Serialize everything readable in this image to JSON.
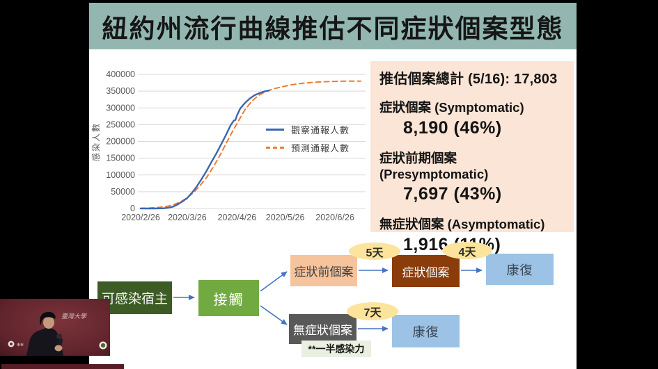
{
  "slide": {
    "title": "紐約州流行曲線推估不同症狀個案型態",
    "title_bar_color": "#93b7b0"
  },
  "chart_data": {
    "type": "line",
    "title": "",
    "xlabel": "",
    "ylabel": "感染人數",
    "ylim": [
      0,
      400000
    ],
    "ytick_step": 50000,
    "xtick_labels": [
      "2020/2/26",
      "2020/3/26",
      "2020/4/26",
      "2020/5/26",
      "2020/6/26"
    ],
    "xtick_days": [
      0,
      29,
      60,
      90,
      121
    ],
    "x_domain_days": [
      0,
      137
    ],
    "grid": true,
    "legend_position": "middle-right",
    "series": [
      {
        "name": "觀察通報人數",
        "color": "#3a66b0",
        "style": "solid",
        "days": [
          0,
          8,
          14,
          17,
          20,
          23,
          26,
          29,
          32,
          35,
          38,
          41,
          44,
          47,
          50,
          53,
          56,
          58,
          59,
          60,
          62,
          65,
          68,
          71,
          74,
          77,
          80
        ],
        "values": [
          0,
          0,
          500,
          2000,
          5000,
          12000,
          21000,
          31000,
          47000,
          66000,
          88000,
          112000,
          138000,
          163000,
          190000,
          218000,
          248000,
          262000,
          264000,
          278000,
          298000,
          315000,
          328000,
          338000,
          344000,
          349000,
          352000
        ]
      },
      {
        "name": "預測通報人數",
        "color": "#ed7d31",
        "style": "dashed",
        "days": [
          0,
          6,
          12,
          17,
          21,
          25,
          29,
          33,
          37,
          41,
          45,
          49,
          53,
          57,
          61,
          65,
          69,
          73,
          78,
          83,
          88,
          94,
          100,
          107,
          114,
          121,
          129,
          137
        ],
        "values": [
          500,
          1500,
          3500,
          7000,
          12000,
          20000,
          32000,
          48000,
          68000,
          92000,
          122000,
          155000,
          192000,
          228000,
          262000,
          295000,
          319000,
          336000,
          349000,
          357000,
          363000,
          369000,
          373000,
          376000,
          378000,
          379000,
          380000,
          380000
        ]
      }
    ]
  },
  "stats": {
    "total_line": "推估個案總計 (5/16): 17,803",
    "items": [
      {
        "label": "症狀個案 (Symptomatic)",
        "value": "8,190 (46%)"
      },
      {
        "label": "症狀前期個案 (Presymptomatic)",
        "value": "7,697 (43%)"
      },
      {
        "label": "無症狀個案 (Asymptomatic)",
        "value": "1,916 (11%)"
      }
    ],
    "panel_color": "#fbe5d6"
  },
  "flow": {
    "nodes": {
      "host": "可感染宿主",
      "contact": "接觸",
      "presymptomatic": "症狀前個案",
      "symptomatic": "症狀個案",
      "recovered_top": "康復",
      "asymptomatic": "無症狀個案",
      "recovered_bottom": "康復",
      "note": "**一半感染力"
    },
    "durations": {
      "d5": "5天",
      "d4": "4天",
      "d7": "7天"
    },
    "arrow_color": "#4472c4"
  },
  "webcam": {
    "backdrop_text": "臺灣大學"
  }
}
